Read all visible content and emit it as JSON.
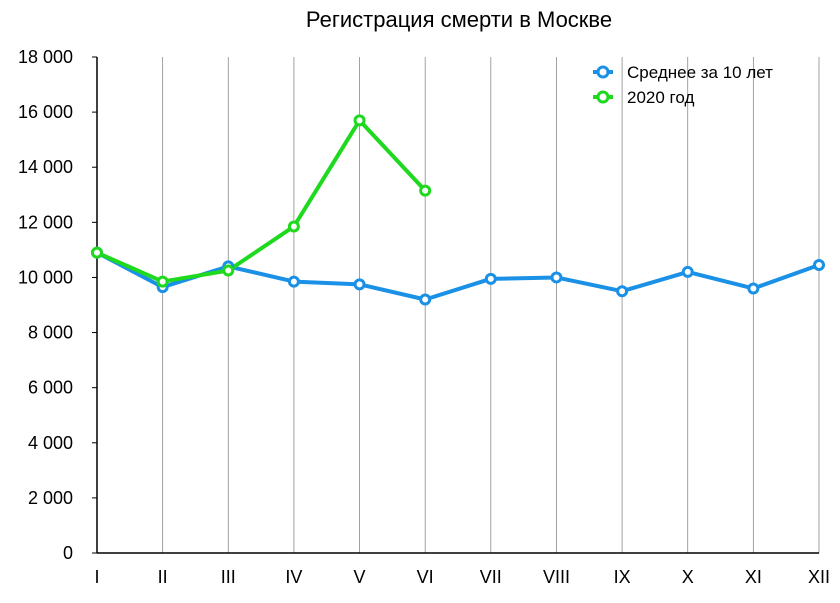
{
  "chart_data": {
    "type": "line",
    "title": "Регистрация смерти в Москве",
    "xlabel": "",
    "ylabel": "",
    "categories": [
      "I",
      "II",
      "III",
      "IV",
      "V",
      "VI",
      "VII",
      "VIII",
      "IX",
      "X",
      "XI",
      "XII"
    ],
    "ylim": [
      0,
      18000
    ],
    "y_ticks": [
      0,
      2000,
      4000,
      6000,
      8000,
      10000,
      12000,
      14000,
      16000,
      18000
    ],
    "y_tick_labels": [
      "0",
      "2 000",
      "4 000",
      "6 000",
      "8 000",
      "10 000",
      "12 000",
      "14 000",
      "16 000",
      "18 000"
    ],
    "grid": "vertical",
    "legend_position": "top-right",
    "series": [
      {
        "name": "Среднее за 10 лет",
        "color": "#1a90e6",
        "values": [
          10900,
          9650,
          10400,
          9850,
          9750,
          9200,
          9950,
          10000,
          9500,
          10200,
          9600,
          10450
        ]
      },
      {
        "name": "2020 год",
        "color": "#1ed91e",
        "values": [
          10900,
          9850,
          10250,
          11850,
          15700,
          13150,
          null,
          null,
          null,
          null,
          null,
          null
        ]
      }
    ]
  }
}
